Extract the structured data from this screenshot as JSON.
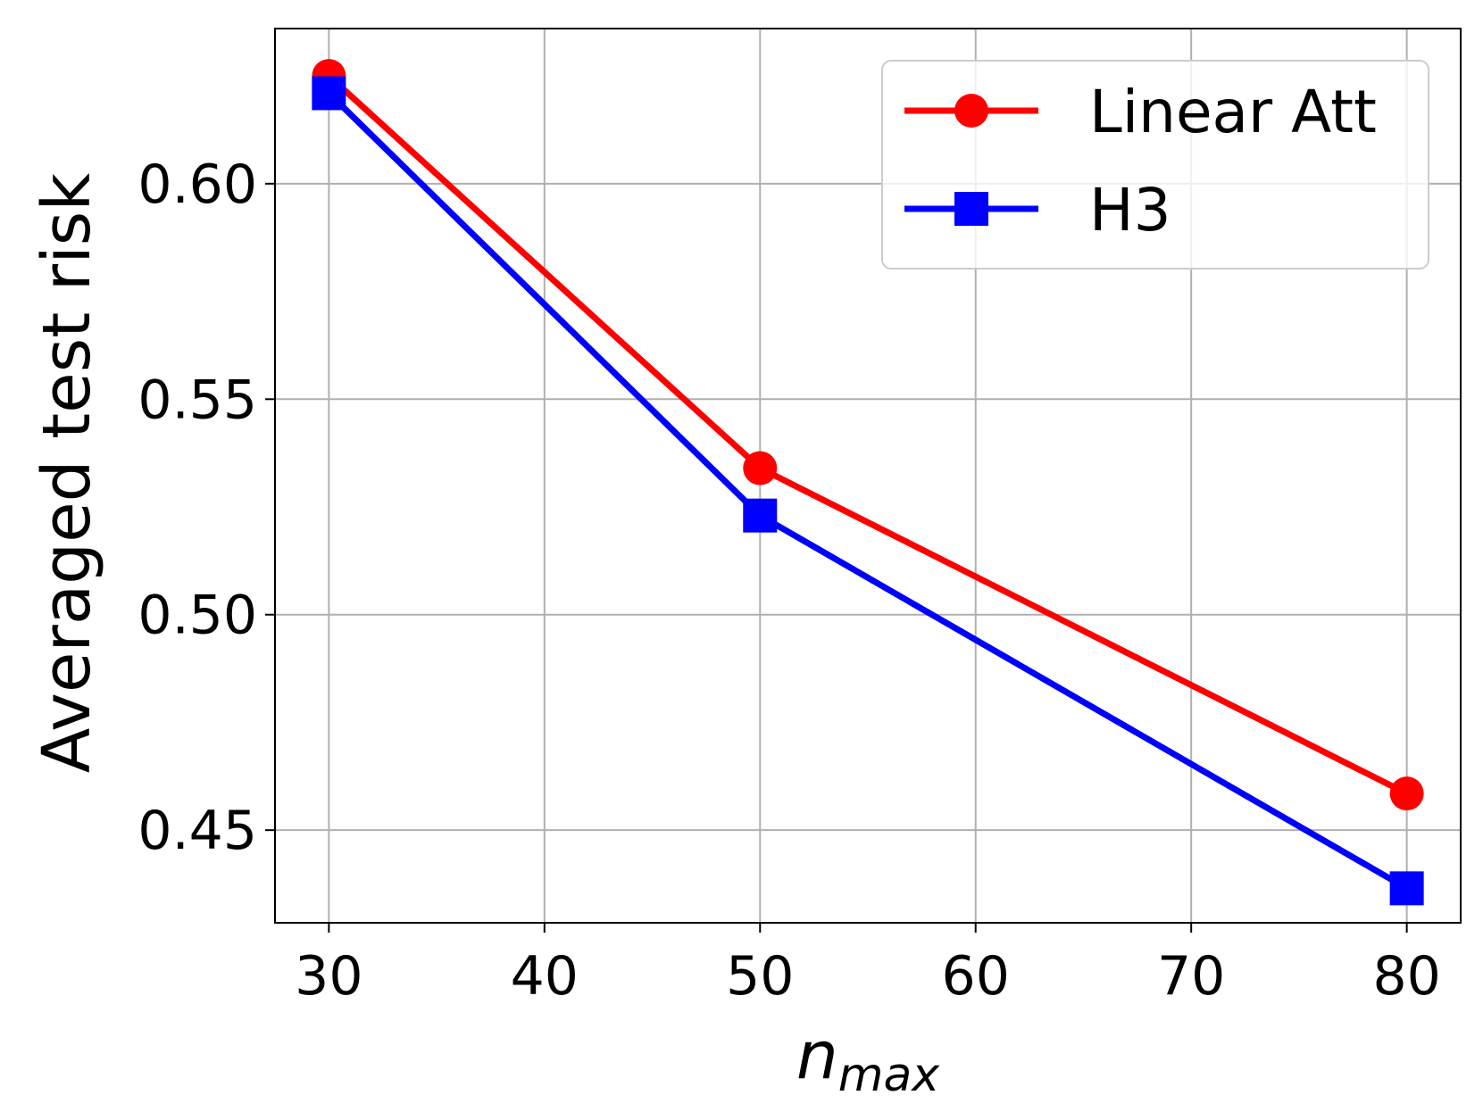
{
  "chart_data": {
    "type": "line",
    "title": "",
    "xlabel": "n",
    "xlabel_subscript": "max",
    "ylabel": "Averaged test risk",
    "xlim": [
      27.5,
      82.5
    ],
    "ylim": [
      0.4285,
      0.636
    ],
    "xticks": [
      30,
      40,
      50,
      60,
      70,
      80
    ],
    "yticks": [
      0.45,
      0.5,
      0.55,
      0.6
    ],
    "xtick_labels": [
      "30",
      "40",
      "50",
      "60",
      "70",
      "80"
    ],
    "ytick_labels": [
      "0.45",
      "0.50",
      "0.55",
      "0.60"
    ],
    "grid": true,
    "legend_position": "top-right",
    "x": [
      30,
      50,
      80
    ],
    "series": [
      {
        "name": "Linear Att",
        "color": "#ff0000",
        "marker": "circle",
        "values": [
          0.625,
          0.534,
          0.4585
        ]
      },
      {
        "name": "H3",
        "color": "#0000ff",
        "marker": "square",
        "values": [
          0.621,
          0.523,
          0.4365
        ]
      }
    ]
  }
}
